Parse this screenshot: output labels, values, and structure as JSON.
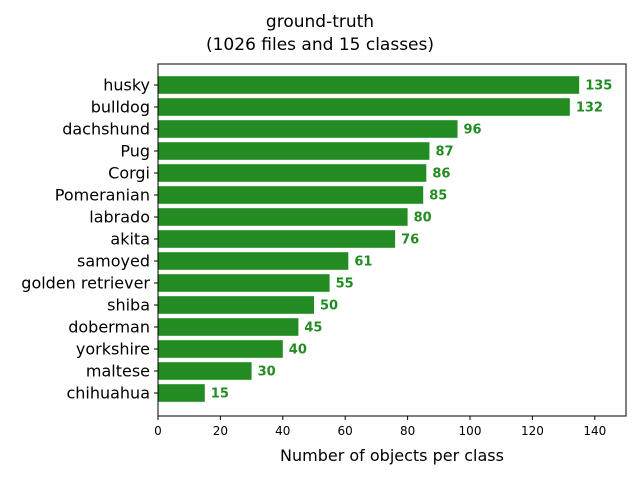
{
  "chart_data": {
    "type": "bar",
    "orientation": "horizontal",
    "title": "ground-truth",
    "subtitle": "(1026 files and 15 classes)",
    "xlabel": "Number of objects per class",
    "ylabel": "",
    "xlim": [
      0,
      150
    ],
    "xticks": [
      0,
      20,
      40,
      60,
      80,
      100,
      120,
      140
    ],
    "grid": false,
    "bar_color": "#228b22",
    "label_color": "#228b22",
    "categories": [
      "husky",
      "bulldog",
      "dachshund",
      "Pug",
      "Corgi",
      "Pomeranian",
      "labrado",
      "akita",
      "samoyed",
      "golden retriever",
      "shiba",
      "doberman",
      "yorkshire",
      "maltese",
      "chihuahua"
    ],
    "values": [
      135,
      132,
      96,
      87,
      86,
      85,
      80,
      76,
      61,
      55,
      50,
      45,
      40,
      30,
      15
    ]
  }
}
